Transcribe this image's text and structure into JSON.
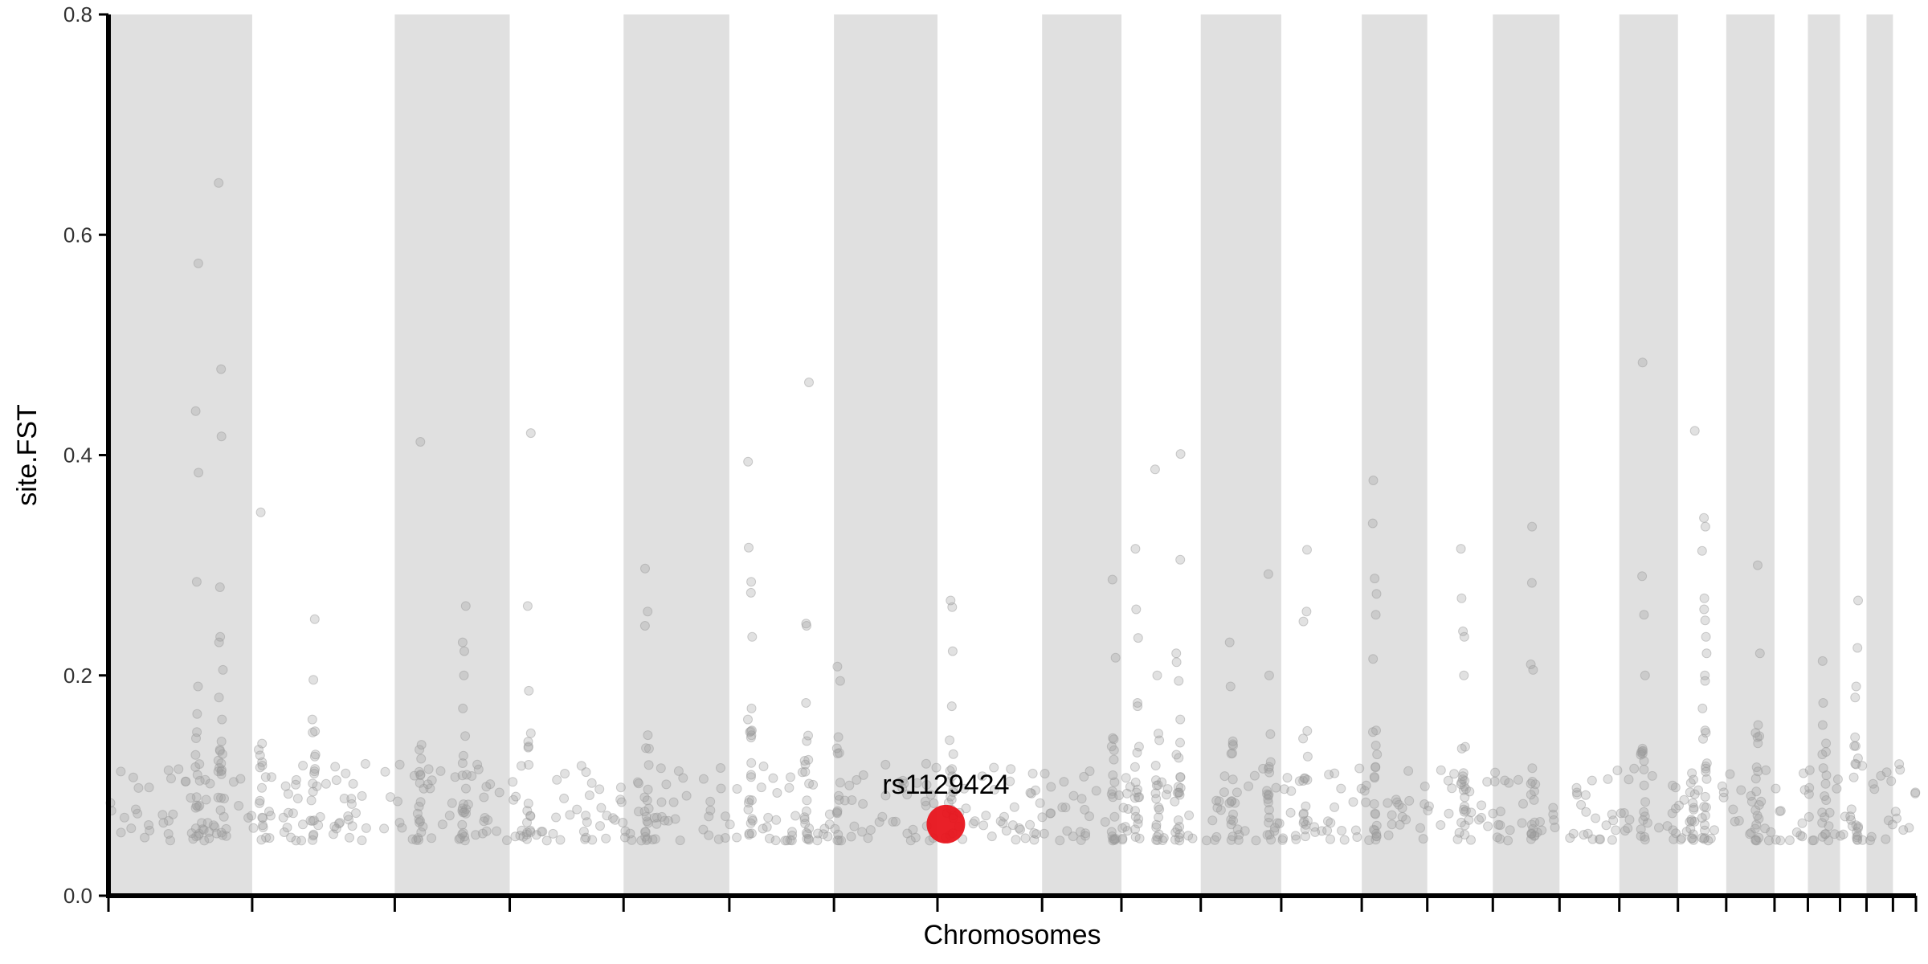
{
  "chart_data": {
    "type": "scatter",
    "title": "",
    "xlabel": "Chromosomes",
    "ylabel": "site.FST",
    "ylim": [
      0,
      0.8
    ],
    "yticks": [
      "0.0",
      "0.2",
      "0.4",
      "0.6",
      "0.8"
    ],
    "grid": false,
    "legend": "none",
    "chromosome_count": 24,
    "chromosome_relative_sizes": [
      1.25,
      1.24,
      1.0,
      0.99,
      0.92,
      0.91,
      0.9,
      0.91,
      0.69,
      0.69,
      0.7,
      0.7,
      0.57,
      0.57,
      0.58,
      0.52,
      0.51,
      0.42,
      0.42,
      0.29,
      0.28,
      0.23,
      0.23,
      0.2
    ],
    "shaded_band_color": "#e0e0e0",
    "background_point_color": "#9a9a9a",
    "highlight_color": "#e8141c",
    "highlight": {
      "label": "rs1129424",
      "chromosome": 8,
      "position_fraction": 0.08,
      "y": 0.065
    },
    "background_series": {
      "baseline_min": 0.05,
      "baseline_max": 0.12,
      "peaks": [
        {
          "chromosome": 1,
          "position_fraction": 0.62,
          "values": [
            0.574,
            0.44,
            0.384,
            0.285,
            0.19,
            0.165
          ]
        },
        {
          "chromosome": 1,
          "position_fraction": 0.78,
          "values": [
            0.647,
            0.478,
            0.417,
            0.28,
            0.235,
            0.23,
            0.205,
            0.18,
            0.16,
            0.14
          ]
        },
        {
          "chromosome": 2,
          "position_fraction": 0.06,
          "values": [
            0.348
          ]
        },
        {
          "chromosome": 2,
          "position_fraction": 0.43,
          "values": [
            0.251,
            0.196,
            0.16
          ]
        },
        {
          "chromosome": 3,
          "position_fraction": 0.22,
          "values": [
            0.412
          ]
        },
        {
          "chromosome": 3,
          "position_fraction": 0.6,
          "values": [
            0.263,
            0.23,
            0.222,
            0.2,
            0.17,
            0.145
          ]
        },
        {
          "chromosome": 4,
          "position_fraction": 0.17,
          "values": [
            0.42,
            0.263,
            0.186
          ]
        },
        {
          "chromosome": 5,
          "position_fraction": 0.22,
          "values": [
            0.297,
            0.258,
            0.245
          ]
        },
        {
          "chromosome": 6,
          "position_fraction": 0.2,
          "values": [
            0.394,
            0.316,
            0.285,
            0.275,
            0.235,
            0.17,
            0.16,
            0.15
          ]
        },
        {
          "chromosome": 6,
          "position_fraction": 0.74,
          "values": [
            0.466,
            0.247,
            0.245,
            0.175
          ]
        },
        {
          "chromosome": 7,
          "position_fraction": 0.05,
          "values": [
            0.208,
            0.195
          ]
        },
        {
          "chromosome": 8,
          "position_fraction": 0.13,
          "values": [
            0.268,
            0.262,
            0.222,
            0.172
          ]
        },
        {
          "chromosome": 9,
          "position_fraction": 0.9,
          "values": [
            0.287,
            0.216
          ]
        },
        {
          "chromosome": 10,
          "position_fraction": 0.2,
          "values": [
            0.315,
            0.26,
            0.234,
            0.175,
            0.172
          ]
        },
        {
          "chromosome": 10,
          "position_fraction": 0.45,
          "values": [
            0.387,
            0.2
          ]
        },
        {
          "chromosome": 10,
          "position_fraction": 0.72,
          "values": [
            0.401,
            0.305,
            0.22,
            0.212,
            0.195,
            0.16
          ]
        },
        {
          "chromosome": 11,
          "position_fraction": 0.38,
          "values": [
            0.23,
            0.19
          ]
        },
        {
          "chromosome": 11,
          "position_fraction": 0.85,
          "values": [
            0.292,
            0.2
          ]
        },
        {
          "chromosome": 12,
          "position_fraction": 0.3,
          "values": [
            0.314,
            0.258,
            0.249
          ]
        },
        {
          "chromosome": 13,
          "position_fraction": 0.2,
          "values": [
            0.377,
            0.338,
            0.288,
            0.274,
            0.255,
            0.215,
            0.15
          ]
        },
        {
          "chromosome": 14,
          "position_fraction": 0.55,
          "values": [
            0.315,
            0.27,
            0.24,
            0.235,
            0.2
          ]
        },
        {
          "chromosome": 15,
          "position_fraction": 0.6,
          "values": [
            0.335,
            0.284,
            0.21,
            0.205
          ]
        },
        {
          "chromosome": 17,
          "position_fraction": 0.4,
          "values": [
            0.484,
            0.29,
            0.255,
            0.2
          ]
        },
        {
          "chromosome": 18,
          "position_fraction": 0.3,
          "values": [
            0.422
          ]
        },
        {
          "chromosome": 18,
          "position_fraction": 0.55,
          "values": [
            0.343,
            0.335,
            0.313,
            0.27,
            0.26,
            0.25,
            0.235,
            0.22,
            0.2,
            0.195,
            0.17,
            0.15
          ]
        },
        {
          "chromosome": 19,
          "position_fraction": 0.65,
          "values": [
            0.3,
            0.22,
            0.155
          ]
        },
        {
          "chromosome": 21,
          "position_fraction": 0.5,
          "values": [
            0.213,
            0.175,
            0.155
          ]
        },
        {
          "chromosome": 22,
          "position_fraction": 0.6,
          "values": [
            0.268,
            0.225,
            0.19,
            0.18
          ]
        }
      ]
    }
  }
}
